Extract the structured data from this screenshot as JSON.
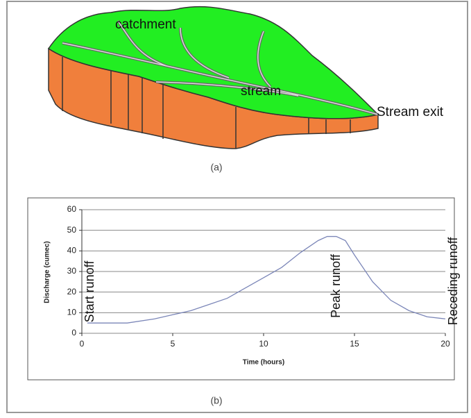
{
  "diagram": {
    "labels": {
      "catchment": "catchment",
      "stream": "stream",
      "stream_exit": "Stream exit"
    },
    "caption": "(a)"
  },
  "chart_data": {
    "type": "line",
    "caption": "(b)",
    "x_label": "Time (hours)",
    "y_label": "Discharge (cumec)",
    "x": [
      0.3,
      1,
      2.5,
      4,
      5,
      6,
      7,
      8,
      9,
      10,
      11,
      12,
      13,
      13.5,
      14,
      14.5,
      15,
      16,
      17,
      18,
      19,
      20
    ],
    "series": [
      {
        "color": "#7b86b8",
        "values": [
          5,
          5,
          5,
          7,
          9,
          11,
          14,
          17,
          22,
          27,
          32,
          39,
          45,
          47,
          47,
          45,
          38,
          25,
          16,
          11,
          8,
          7
        ]
      }
    ],
    "xlim": [
      0,
      20
    ],
    "xticks": [
      0,
      5,
      10,
      15,
      20
    ],
    "ylim": [
      0,
      60
    ],
    "yticks": [
      0,
      10,
      20,
      30,
      40,
      50,
      60
    ],
    "grid": true,
    "annotations": [
      "Start runoff",
      "Peak runoff",
      "Receding runoff"
    ]
  }
}
